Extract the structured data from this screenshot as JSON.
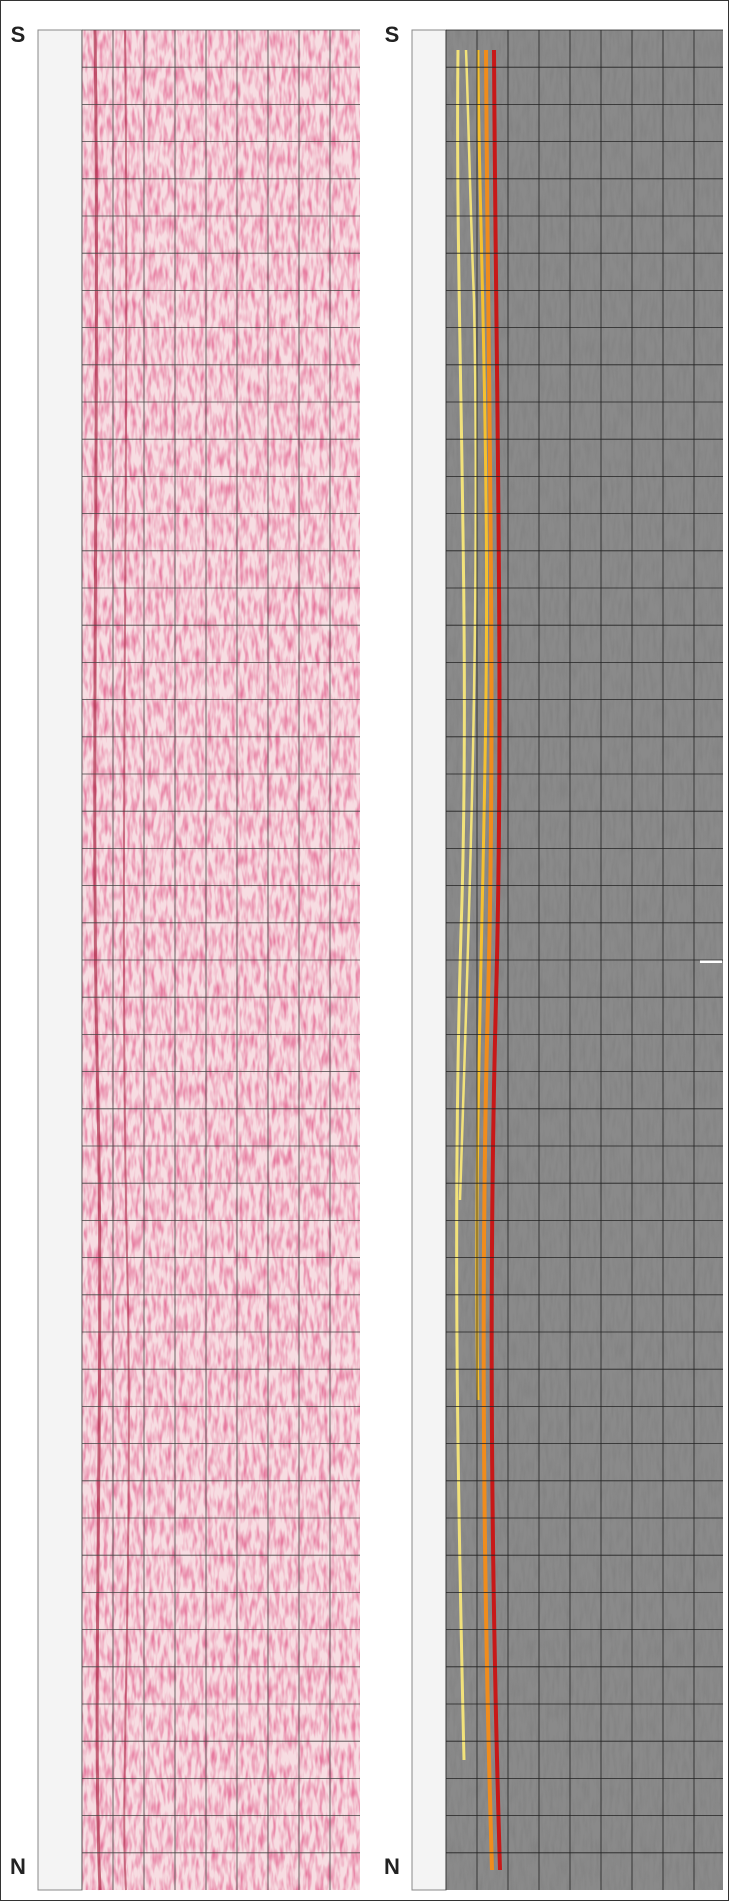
{
  "panels": [
    {
      "top_label": "S",
      "bottom_label": "N"
    },
    {
      "top_label": "S",
      "bottom_label": "N"
    }
  ]
}
